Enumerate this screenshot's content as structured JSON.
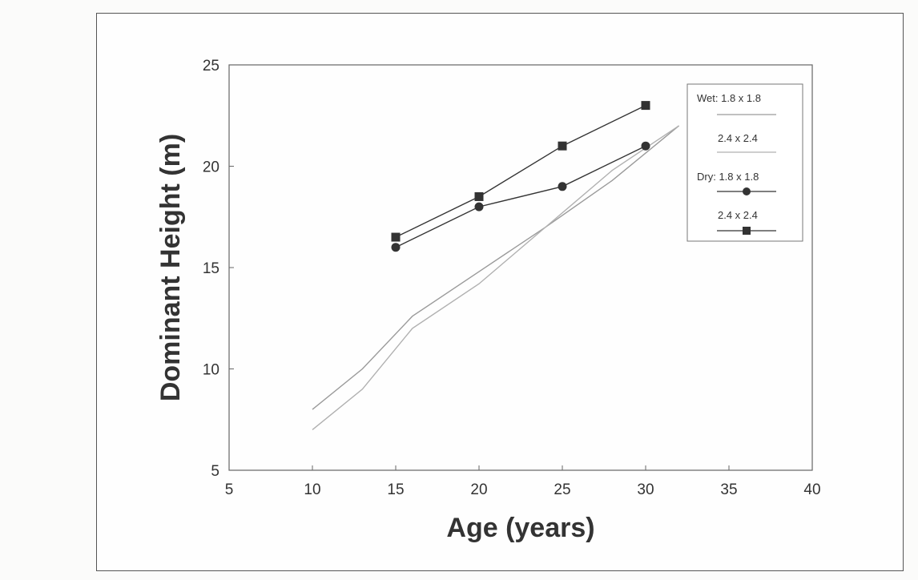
{
  "chart_data": {
    "type": "line",
    "xlabel": "Age (years)",
    "ylabel": "Dominant Height (m)",
    "xlim": [
      5,
      40
    ],
    "ylim": [
      5,
      25
    ],
    "xticks": [
      "5",
      "10",
      "15",
      "20",
      "25",
      "30",
      "35",
      "40"
    ],
    "yticks": [
      "5",
      "10",
      "15",
      "20",
      "25"
    ],
    "grid": false,
    "legend_position": "top-right",
    "series": [
      {
        "name": "Wet: 1.8 x 1.8",
        "marker": "none",
        "color": "#9a9a9a",
        "x": [
          10,
          13,
          16,
          20,
          24,
          28,
          32
        ],
        "y": [
          8.0,
          10.0,
          12.6,
          14.8,
          17.0,
          19.3,
          22.0
        ]
      },
      {
        "name": "2.4 x 2.4",
        "marker": "none",
        "color": "#b0b0b0",
        "x": [
          10,
          13,
          16,
          20,
          24,
          28,
          32
        ],
        "y": [
          7.0,
          9.0,
          12.0,
          14.2,
          17.0,
          19.8,
          22.0
        ]
      },
      {
        "name": "Dry: 1.8 x 1.8",
        "marker": "circle",
        "color": "#333333",
        "x": [
          15,
          20,
          25,
          30
        ],
        "y": [
          16.0,
          18.0,
          19.0,
          21.0
        ]
      },
      {
        "name": "2.4 x 2.4",
        "marker": "square",
        "color": "#333333",
        "x": [
          15,
          20,
          25,
          30
        ],
        "y": [
          16.5,
          18.5,
          21.0,
          23.0
        ]
      }
    ]
  }
}
